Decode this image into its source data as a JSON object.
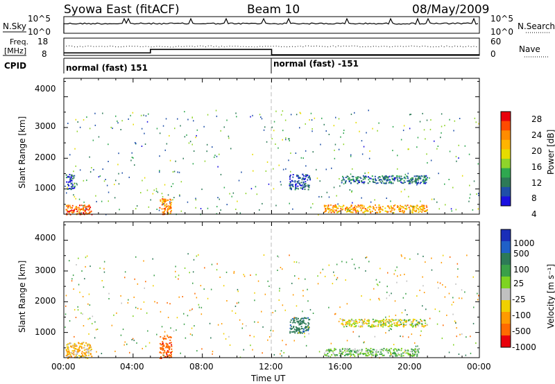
{
  "header": {
    "station": "Syowa East (fitACF)",
    "beam": "Beam 10",
    "date": "08/May/2009"
  },
  "noise_panel": {
    "left_label": "N.Sky",
    "left_ticks": [
      "10^5",
      "10^0"
    ],
    "right_label": "N.Search",
    "right_ticks": [
      "10^5",
      "10^0"
    ]
  },
  "freq_panel": {
    "left_label_1": "Freq.",
    "left_label_2": "[MHz]",
    "left_ticks": [
      "18",
      "8"
    ],
    "right_label": "Nave",
    "right_ticks": [
      "60",
      "0"
    ],
    "cpid_label": "CPID"
  },
  "cpid_segments": [
    {
      "label": "normal (fast) 151",
      "start_hr": 0
    },
    {
      "label": "normal (fast) -151",
      "start_hr": 12
    }
  ],
  "x_axis": {
    "label": "Time UT",
    "tick_labels": [
      "00:00",
      "04:00",
      "08:00",
      "12:00",
      "16:00",
      "20:00",
      "00:00"
    ],
    "range_hours": [
      0,
      24
    ]
  },
  "power_panel": {
    "ylabel": "Slant Range [km]",
    "yticks": [
      "4000",
      "3000",
      "2000",
      "1000"
    ],
    "cbar_label": "Power [dB]",
    "cbar_ticks": [
      "28",
      "24",
      "20",
      "16",
      "12",
      "8",
      "4"
    ],
    "cbar_colors": [
      "#e8000b",
      "#ff4a00",
      "#ff8c00",
      "#ffb400",
      "#e6dc00",
      "#8fd42a",
      "#2fa84f",
      "#2d7a57",
      "#1f4fa8",
      "#1a10e0"
    ]
  },
  "velocity_panel": {
    "ylabel": "Slant Range [km]",
    "yticks": [
      "4000",
      "3000",
      "2000",
      "1000"
    ],
    "cbar_label": "Velocity [m s⁻¹]",
    "cbar_ticks": [
      "1000",
      "500",
      "100",
      "25",
      "-25",
      "-100",
      "-500",
      "-1000"
    ],
    "cbar_colors": [
      "#1a2eb8",
      "#2060c8",
      "#2d7a57",
      "#3aa048",
      "#7ed321",
      "#c0c0c0",
      "#f0d000",
      "#ff9a00",
      "#ff6a00",
      "#e8000b"
    ]
  },
  "chart_data": {
    "type": "heatmap",
    "title": "Syowa East (fitACF)  Beam 10  08/May/2009",
    "xlabel": "Time UT",
    "ylabel": "Slant Range [km]",
    "xlim_hours": [
      0,
      24
    ],
    "ylim_km": [
      180,
      4600
    ],
    "freq_mhz": [
      {
        "from_hr": 0,
        "to_hr": 5,
        "value": 9.5
      },
      {
        "from_hr": 5,
        "to_hr": 12,
        "value": 11.5
      },
      {
        "from_hr": 12,
        "to_hr": 24,
        "value": 8.4
      }
    ],
    "power_regions": [
      {
        "t0": 0.1,
        "t1": 1.6,
        "r0": 180,
        "r1": 500,
        "level": 26
      },
      {
        "t0": 0.1,
        "t1": 0.6,
        "r0": 1000,
        "r1": 1500,
        "level": 6
      },
      {
        "t0": 5.5,
        "t1": 6.2,
        "r0": 180,
        "r1": 700,
        "level": 24
      },
      {
        "t0": 13.0,
        "t1": 14.2,
        "r0": 1000,
        "r1": 1500,
        "level": 6
      },
      {
        "t0": 15.0,
        "t1": 21.0,
        "r0": 250,
        "r1": 500,
        "level": 22
      },
      {
        "t0": 16.0,
        "t1": 21.0,
        "r0": 1200,
        "r1": 1450,
        "level": 8
      }
    ],
    "velocity_regions": [
      {
        "t0": 0.1,
        "t1": 1.6,
        "r0": 180,
        "r1": 700,
        "level": -100
      },
      {
        "t0": 5.5,
        "t1": 6.2,
        "r0": 180,
        "r1": 900,
        "level": -500
      },
      {
        "t0": 13.0,
        "t1": 14.2,
        "r0": 1000,
        "r1": 1500,
        "level": 500
      },
      {
        "t0": 15.0,
        "t1": 20.5,
        "r0": 250,
        "r1": 500,
        "level": 100
      },
      {
        "t0": 16.0,
        "t1": 21.0,
        "r0": 1200,
        "r1": 1450,
        "level": 0
      }
    ]
  }
}
